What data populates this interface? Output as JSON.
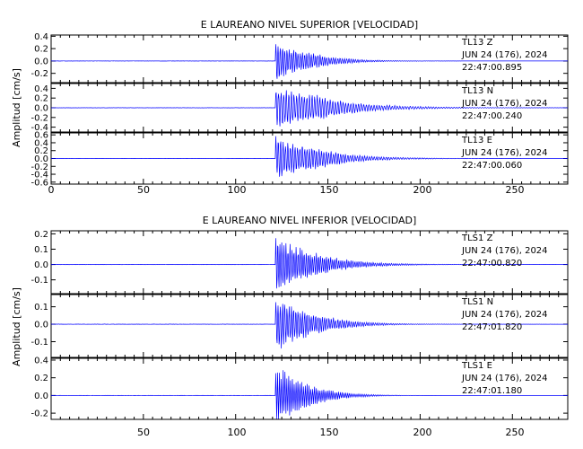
{
  "colors": {
    "trace": "#0000ff",
    "axes": "#000000",
    "background": "#ffffff"
  },
  "figures": [
    {
      "title": "E LAUREANO NIVEL SUPERIOR [VELOCIDAD]",
      "ylabel": "Amplitud [cm/s]",
      "x_ticks": [
        "0",
        "50",
        "100",
        "150",
        "200",
        "250"
      ]
    },
    {
      "title": "E LAUREANO NIVEL INFERIOR [VELOCIDAD]",
      "ylabel": "Amplitud [cm/s]",
      "x_ticks": [
        "50",
        "100",
        "150",
        "200",
        "250"
      ]
    }
  ],
  "chart_data": [
    {
      "type": "line",
      "title": "E LAUREANO NIVEL SUPERIOR [VELOCIDAD]",
      "ylabel": "Amplitud [cm/s]",
      "xlim": [
        0,
        280
      ],
      "x_ticks": [
        0,
        50,
        100,
        150,
        200,
        250
      ],
      "panels": [
        {
          "station": "TL13",
          "component": "Z",
          "date": "JUN 24 (176), 2024",
          "time": "22:47:00.895",
          "ylim": [
            -0.35,
            0.42
          ],
          "y_ticks": [
            -0.2,
            0.0,
            0.2,
            0.4
          ],
          "y_tick_labels": [
            "-0.2",
            "0.0",
            "0.2",
            "0.4"
          ],
          "onset_x": 121.5,
          "peak_amplitude": 0.35,
          "decay": 0.06,
          "period": 1.2,
          "coda": 0.12
        },
        {
          "station": "TL13",
          "component": "N",
          "date": "JUN 24 (176), 2024",
          "time": "22:47:00.240",
          "ylim": [
            -0.5,
            0.5
          ],
          "y_ticks": [
            -0.4,
            -0.2,
            0.0,
            0.2,
            0.4
          ],
          "y_tick_labels": [
            "-0.4",
            "-0.2",
            "0.0",
            "0.2",
            "0.4"
          ],
          "onset_x": 121.5,
          "peak_amplitude": 0.45,
          "decay": 0.035,
          "period": 1.4,
          "coda": 0.22
        },
        {
          "station": "TL13",
          "component": "E",
          "date": "JUN 24 (176), 2024",
          "time": "22:47:00.060",
          "ylim": [
            -0.65,
            0.65
          ],
          "y_ticks": [
            -0.6,
            -0.4,
            -0.2,
            0.0,
            0.2,
            0.4,
            0.6
          ],
          "y_tick_labels": [
            "-0.6",
            "-0.4",
            "-0.2",
            "0.0",
            "0.2",
            "0.4",
            "0.6"
          ],
          "onset_x": 121.5,
          "peak_amplitude": 0.6,
          "decay": 0.045,
          "period": 1.3,
          "coda": 0.15
        }
      ]
    },
    {
      "type": "line",
      "title": "E LAUREANO NIVEL INFERIOR [VELOCIDAD]",
      "ylabel": "Amplitud [cm/s]",
      "xlim": [
        0,
        280
      ],
      "x_ticks": [
        50,
        100,
        150,
        200,
        250
      ],
      "panels": [
        {
          "station": "TLS1",
          "component": "Z",
          "date": "JUN 24 (176), 2024",
          "time": "22:47:00.820",
          "ylim": [
            -0.19,
            0.22
          ],
          "y_ticks": [
            -0.1,
            0.0,
            0.1,
            0.2
          ],
          "y_tick_labels": [
            "-0.1",
            "0.0",
            "0.1",
            "0.2"
          ],
          "onset_x": 121.5,
          "peak_amplitude": 0.2,
          "decay": 0.05,
          "period": 1.1,
          "coda": 0.1
        },
        {
          "station": "TLS1",
          "component": "N",
          "date": "JUN 24 (176), 2024",
          "time": "22:47:01.820",
          "ylim": [
            -0.19,
            0.17
          ],
          "y_ticks": [
            -0.1,
            0.0,
            0.1
          ],
          "y_tick_labels": [
            "-0.1",
            "0.0",
            "0.1"
          ],
          "onset_x": 121.5,
          "peak_amplitude": 0.17,
          "decay": 0.055,
          "period": 1.2,
          "coda": 0.1
        },
        {
          "station": "TLS1",
          "component": "E",
          "date": "JUN 24 (176), 2024",
          "time": "22:47:01.180",
          "ylim": [
            -0.27,
            0.42
          ],
          "y_ticks": [
            -0.2,
            0.0,
            0.2,
            0.4
          ],
          "y_tick_labels": [
            "-0.2",
            "0.0",
            "0.2",
            "0.4"
          ],
          "onset_x": 121.5,
          "peak_amplitude": 0.38,
          "decay": 0.07,
          "period": 1.0,
          "coda": 0.08
        }
      ]
    }
  ]
}
